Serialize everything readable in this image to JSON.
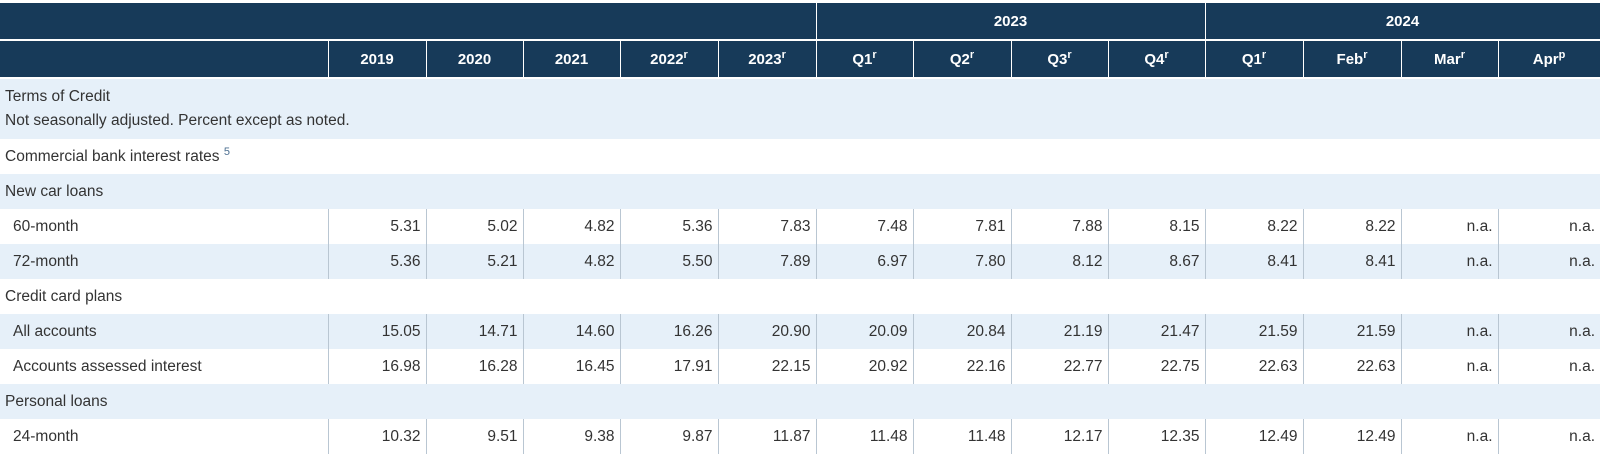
{
  "group_headers": [
    {
      "label": ""
    },
    {
      "label": "2023"
    },
    {
      "label": "2024"
    }
  ],
  "columns": [
    {
      "label": "2019",
      "mark": ""
    },
    {
      "label": "2020",
      "mark": ""
    },
    {
      "label": "2021",
      "mark": ""
    },
    {
      "label": "2022",
      "mark": "r"
    },
    {
      "label": "2023",
      "mark": "r"
    },
    {
      "label": "Q1",
      "mark": "r"
    },
    {
      "label": "Q2",
      "mark": "r"
    },
    {
      "label": "Q3",
      "mark": "r"
    },
    {
      "label": "Q4",
      "mark": "r"
    },
    {
      "label": "Q1",
      "mark": "r"
    },
    {
      "label": "Feb",
      "mark": "r"
    },
    {
      "label": "Mar",
      "mark": "r"
    },
    {
      "label": "Apr",
      "mark": "p"
    }
  ],
  "intro": {
    "title": "Terms of Credit",
    "note": "Not seasonally adjusted. Percent except as noted."
  },
  "rows": [
    {
      "type": "section",
      "label": "Commercial bank interest rates",
      "ref": "5"
    },
    {
      "type": "section",
      "label": "New car loans"
    },
    {
      "type": "data",
      "label": "60-month",
      "values": [
        "5.31",
        "5.02",
        "4.82",
        "5.36",
        "7.83",
        "7.48",
        "7.81",
        "7.88",
        "8.15",
        "8.22",
        "8.22",
        "n.a.",
        "n.a."
      ]
    },
    {
      "type": "data",
      "label": "72-month",
      "values": [
        "5.36",
        "5.21",
        "4.82",
        "5.50",
        "7.89",
        "6.97",
        "7.80",
        "8.12",
        "8.67",
        "8.41",
        "8.41",
        "n.a.",
        "n.a."
      ]
    },
    {
      "type": "section",
      "label": "Credit card plans"
    },
    {
      "type": "data",
      "label": "All accounts",
      "values": [
        "15.05",
        "14.71",
        "14.60",
        "16.26",
        "20.90",
        "20.09",
        "20.84",
        "21.19",
        "21.47",
        "21.59",
        "21.59",
        "n.a.",
        "n.a."
      ]
    },
    {
      "type": "data",
      "label": "Accounts assessed interest",
      "values": [
        "16.98",
        "16.28",
        "16.45",
        "17.91",
        "22.15",
        "20.92",
        "22.16",
        "22.77",
        "22.75",
        "22.63",
        "22.63",
        "n.a.",
        "n.a."
      ]
    },
    {
      "type": "section",
      "label": "Personal loans"
    },
    {
      "type": "data",
      "label": "24-month",
      "values": [
        "10.32",
        "9.51",
        "9.38",
        "9.87",
        "11.87",
        "11.48",
        "11.48",
        "12.17",
        "12.35",
        "12.49",
        "12.49",
        "n.a.",
        "n.a."
      ]
    }
  ],
  "colors": {
    "header_bg": "#173a59",
    "row_alt": "#e6f0f9",
    "row_plain": "#ffffff"
  }
}
